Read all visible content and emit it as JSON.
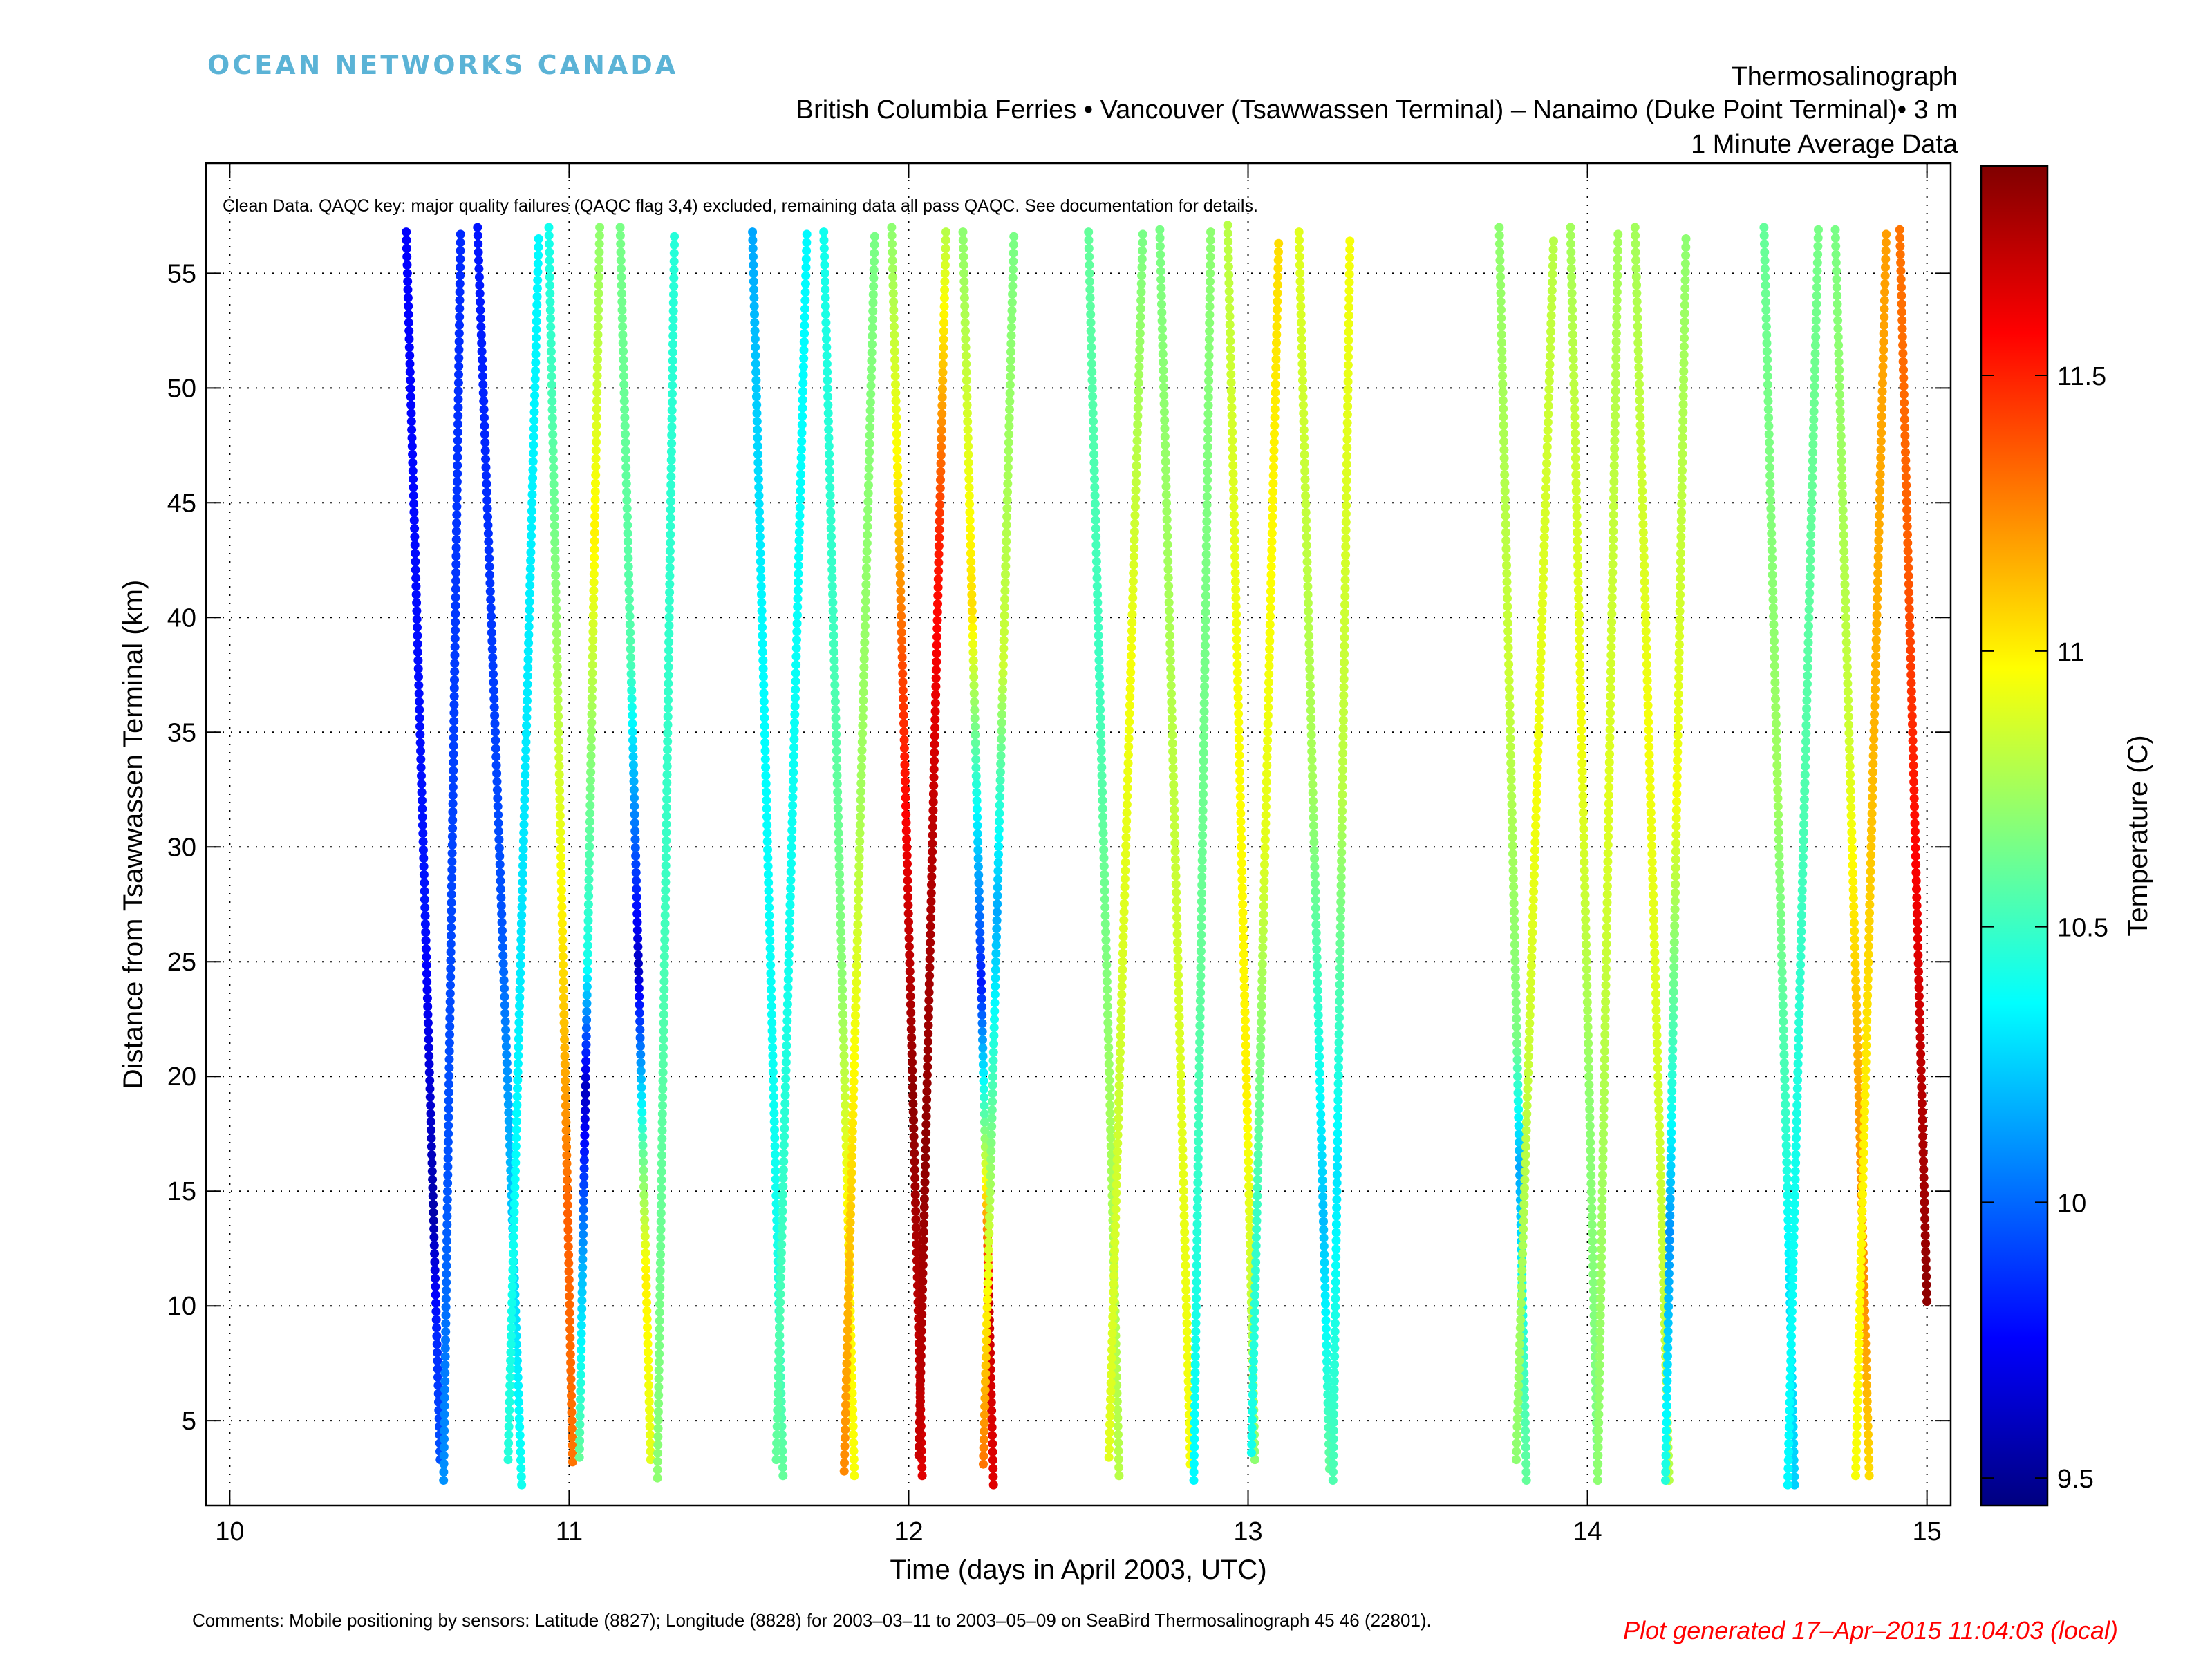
{
  "logo_text": "OCEAN NETWORKS CANADA",
  "title_lines": [
    "Thermosalinograph",
    "British Columbia Ferries  • Vancouver (Tsawwassen Terminal) – Nanaimo (Duke Point Terminal)•  3 m",
    "1 Minute Average Data"
  ],
  "footer": {
    "comments": "Comments: Mobile positioning by sensors: Latitude (8827); Longitude (8828) for 2003–03–11 to 2003–05–09 on SeaBird Thermosalinograph 45 46 (22801).",
    "generated": "Plot generated 17–Apr–2015 11:04:03 (local)"
  },
  "chart_data": {
    "type": "scatter",
    "annotation": "Clean Data. QAQC key: major quality failures (QAQC flag 3,4) excluded, remaining data all pass QAQC. See documentation for details.",
    "xlabel": "Time (days in April 2003, UTC)",
    "ylabel": "Distance from Tsawwassen Terminal (km)",
    "colorbar_label": "Temperature (C)",
    "xlim": [
      9.93,
      15.07
    ],
    "ylim": [
      1.3,
      59.8
    ],
    "xticks": [
      10,
      11,
      12,
      13,
      14,
      15
    ],
    "yticks": [
      5,
      10,
      15,
      20,
      25,
      30,
      35,
      40,
      45,
      50,
      55
    ],
    "clim": [
      9.45,
      11.88
    ],
    "cticks": [
      9.5,
      10,
      10.5,
      11,
      11.5
    ],
    "grid": true,
    "colormap": "jet",
    "transects": [
      {
        "x0": 10.52,
        "x1": 10.62,
        "y0": 56.8,
        "y1": 3.3,
        "temps": [
          [
            0,
            9.75
          ],
          [
            0.55,
            9.8
          ],
          [
            0.8,
            9.55
          ],
          [
            0.9,
            9.85
          ],
          [
            1,
            9.95
          ]
        ]
      },
      {
        "x0": 10.68,
        "x1": 10.63,
        "y0": 56.7,
        "y1": 2.4,
        "temps": [
          [
            0,
            9.85
          ],
          [
            0.4,
            9.9
          ],
          [
            0.75,
            9.95
          ],
          [
            1,
            10.1
          ]
        ]
      },
      {
        "x0": 10.73,
        "x1": 10.86,
        "y0": 57.0,
        "y1": 2.2,
        "temps": [
          [
            0,
            9.8
          ],
          [
            0.55,
            9.95
          ],
          [
            0.75,
            10.2
          ],
          [
            1,
            10.4
          ]
        ]
      },
      {
        "x0": 10.91,
        "x1": 10.82,
        "y0": 56.5,
        "y1": 3.3,
        "temps": [
          [
            0,
            10.35
          ],
          [
            0.55,
            10.3
          ],
          [
            1,
            10.45
          ]
        ]
      },
      {
        "x0": 10.94,
        "x1": 11.01,
        "y0": 57.0,
        "y1": 3.2,
        "temps": [
          [
            0,
            10.4
          ],
          [
            0.3,
            10.7
          ],
          [
            0.6,
            11.05
          ],
          [
            0.8,
            11.35
          ],
          [
            1,
            11.3
          ]
        ]
      },
      {
        "x0": 11.09,
        "x1": 11.03,
        "y0": 57.0,
        "y1": 3.4,
        "temps": [
          [
            0,
            10.7
          ],
          [
            0.25,
            11.0
          ],
          [
            0.6,
            10.4
          ],
          [
            0.7,
            9.6
          ],
          [
            0.85,
            10.2
          ],
          [
            1,
            10.6
          ]
        ]
      },
      {
        "x0": 11.15,
        "x1": 11.24,
        "y0": 57.0,
        "y1": 3.3,
        "temps": [
          [
            0,
            10.65
          ],
          [
            0.35,
            10.55
          ],
          [
            0.6,
            9.6
          ],
          [
            0.75,
            10.6
          ],
          [
            0.85,
            11.0
          ],
          [
            1,
            10.9
          ]
        ]
      },
      {
        "x0": 11.31,
        "x1": 11.26,
        "y0": 56.6,
        "y1": 2.5,
        "temps": [
          [
            0,
            10.45
          ],
          [
            0.5,
            10.5
          ],
          [
            1,
            10.7
          ]
        ]
      },
      {
        "x0": 11.54,
        "x1": 11.63,
        "y0": 56.8,
        "y1": 2.6,
        "temps": [
          [
            0,
            10.15
          ],
          [
            0.3,
            10.35
          ],
          [
            0.8,
            10.4
          ],
          [
            1,
            10.6
          ]
        ]
      },
      {
        "x0": 11.7,
        "x1": 11.61,
        "y0": 56.7,
        "y1": 3.3,
        "temps": [
          [
            0,
            10.35
          ],
          [
            0.6,
            10.4
          ],
          [
            1,
            10.6
          ]
        ]
      },
      {
        "x0": 11.75,
        "x1": 11.84,
        "y0": 56.8,
        "y1": 2.6,
        "temps": [
          [
            0,
            10.4
          ],
          [
            0.3,
            10.5
          ],
          [
            0.6,
            10.7
          ],
          [
            0.8,
            11.0
          ],
          [
            1,
            10.95
          ]
        ]
      },
      {
        "x0": 11.9,
        "x1": 11.81,
        "y0": 56.6,
        "y1": 2.8,
        "temps": [
          [
            0,
            10.65
          ],
          [
            0.45,
            10.75
          ],
          [
            0.8,
            11.1
          ],
          [
            1,
            11.25
          ]
        ]
      },
      {
        "x0": 11.95,
        "x1": 12.04,
        "y0": 57.0,
        "y1": 2.6,
        "temps": [
          [
            0,
            10.7
          ],
          [
            0.2,
            11.0
          ],
          [
            0.35,
            11.4
          ],
          [
            0.55,
            11.7
          ],
          [
            0.7,
            11.85
          ],
          [
            1,
            11.65
          ]
        ]
      },
      {
        "x0": 12.11,
        "x1": 12.03,
        "y0": 56.8,
        "y1": 3.5,
        "temps": [
          [
            0,
            10.8
          ],
          [
            0.25,
            11.5
          ],
          [
            0.5,
            11.75
          ],
          [
            0.75,
            11.85
          ],
          [
            1,
            11.7
          ]
        ]
      },
      {
        "x0": 12.16,
        "x1": 12.25,
        "y0": 56.8,
        "y1": 2.2,
        "temps": [
          [
            0,
            10.7
          ],
          [
            0.3,
            11.05
          ],
          [
            0.5,
            10.2
          ],
          [
            0.6,
            9.8
          ],
          [
            0.75,
            10.9
          ],
          [
            0.85,
            11.7
          ],
          [
            1,
            11.65
          ]
        ]
      },
      {
        "x0": 12.31,
        "x1": 12.22,
        "y0": 56.6,
        "y1": 3.1,
        "temps": [
          [
            0,
            10.65
          ],
          [
            0.35,
            10.85
          ],
          [
            0.55,
            10.15
          ],
          [
            0.75,
            10.7
          ],
          [
            1,
            11.3
          ]
        ]
      },
      {
        "x0": 12.53,
        "x1": 12.62,
        "y0": 56.8,
        "y1": 2.6,
        "temps": [
          [
            0,
            10.6
          ],
          [
            0.35,
            10.5
          ],
          [
            0.7,
            10.75
          ],
          [
            1,
            10.8
          ]
        ]
      },
      {
        "x0": 12.69,
        "x1": 12.59,
        "y0": 56.7,
        "y1": 3.4,
        "temps": [
          [
            0,
            10.65
          ],
          [
            0.35,
            10.95
          ],
          [
            0.7,
            10.85
          ],
          [
            1,
            10.9
          ]
        ]
      },
      {
        "x0": 12.74,
        "x1": 12.83,
        "y0": 56.9,
        "y1": 3.1,
        "temps": [
          [
            0,
            10.65
          ],
          [
            0.4,
            10.8
          ],
          [
            0.7,
            10.9
          ],
          [
            1,
            10.95
          ]
        ]
      },
      {
        "x0": 12.89,
        "x1": 12.84,
        "y0": 56.8,
        "y1": 2.4,
        "temps": [
          [
            0,
            10.7
          ],
          [
            0.6,
            10.6
          ],
          [
            0.8,
            10.45
          ],
          [
            1,
            10.35
          ]
        ]
      },
      {
        "x0": 12.94,
        "x1": 13.02,
        "y0": 57.1,
        "y1": 3.3,
        "temps": [
          [
            0,
            10.8
          ],
          [
            0.35,
            10.95
          ],
          [
            0.7,
            11.0
          ],
          [
            0.9,
            10.8
          ],
          [
            1,
            10.7
          ]
        ]
      },
      {
        "x0": 13.09,
        "x1": 13.01,
        "y0": 56.3,
        "y1": 3.6,
        "temps": [
          [
            0,
            11.05
          ],
          [
            0.5,
            10.9
          ],
          [
            0.8,
            10.5
          ],
          [
            1,
            10.4
          ]
        ]
      },
      {
        "x0": 13.15,
        "x1": 13.24,
        "y0": 56.8,
        "y1": 2.9,
        "temps": [
          [
            0,
            10.9
          ],
          [
            0.45,
            10.75
          ],
          [
            0.8,
            10.2
          ],
          [
            0.9,
            10.4
          ],
          [
            1,
            10.6
          ]
        ]
      },
      {
        "x0": 13.3,
        "x1": 13.25,
        "y0": 56.4,
        "y1": 2.4,
        "temps": [
          [
            0,
            10.95
          ],
          [
            0.45,
            10.8
          ],
          [
            0.75,
            10.3
          ],
          [
            1,
            10.55
          ]
        ]
      },
      {
        "x0": 13.74,
        "x1": 13.82,
        "y0": 57.0,
        "y1": 2.4,
        "temps": [
          [
            0,
            10.7
          ],
          [
            0.35,
            10.85
          ],
          [
            0.65,
            10.65
          ],
          [
            0.75,
            10.15
          ],
          [
            0.9,
            10.5
          ],
          [
            1,
            10.6
          ]
        ]
      },
      {
        "x0": 13.9,
        "x1": 13.79,
        "y0": 56.4,
        "y1": 3.3,
        "temps": [
          [
            0,
            10.8
          ],
          [
            0.45,
            10.95
          ],
          [
            0.75,
            10.8
          ],
          [
            1,
            10.7
          ]
        ]
      },
      {
        "x0": 13.95,
        "x1": 14.03,
        "y0": 57.0,
        "y1": 2.4,
        "temps": [
          [
            0,
            10.75
          ],
          [
            0.4,
            10.95
          ],
          [
            0.7,
            10.7
          ],
          [
            1,
            10.65
          ]
        ]
      },
      {
        "x0": 14.09,
        "x1": 14.03,
        "y0": 56.7,
        "y1": 2.4,
        "temps": [
          [
            0,
            10.75
          ],
          [
            0.45,
            10.9
          ],
          [
            0.75,
            10.75
          ],
          [
            1,
            10.7
          ]
        ]
      },
      {
        "x0": 14.14,
        "x1": 14.24,
        "y0": 57.0,
        "y1": 2.4,
        "temps": [
          [
            0,
            10.75
          ],
          [
            0.4,
            10.95
          ],
          [
            0.75,
            10.85
          ],
          [
            1,
            10.8
          ]
        ]
      },
      {
        "x0": 14.29,
        "x1": 14.23,
        "y0": 56.5,
        "y1": 2.4,
        "temps": [
          [
            0,
            10.7
          ],
          [
            0.45,
            10.95
          ],
          [
            0.7,
            10.4
          ],
          [
            0.8,
            10.1
          ],
          [
            1,
            10.45
          ]
        ]
      },
      {
        "x0": 14.52,
        "x1": 14.61,
        "y0": 57.0,
        "y1": 2.2,
        "temps": [
          [
            0,
            10.6
          ],
          [
            0.45,
            10.75
          ],
          [
            0.7,
            10.5
          ],
          [
            0.85,
            10.3
          ],
          [
            1,
            10.25
          ]
        ]
      },
      {
        "x0": 14.68,
        "x1": 14.59,
        "y0": 56.9,
        "y1": 2.2,
        "temps": [
          [
            0,
            10.65
          ],
          [
            0.45,
            10.55
          ],
          [
            0.75,
            10.4
          ],
          [
            1,
            10.35
          ]
        ]
      },
      {
        "x0": 14.73,
        "x1": 14.83,
        "y0": 56.9,
        "y1": 2.6,
        "temps": [
          [
            0,
            10.65
          ],
          [
            0.4,
            10.85
          ],
          [
            0.7,
            11.2
          ],
          [
            0.85,
            11.25
          ],
          [
            1,
            11.05
          ]
        ]
      },
      {
        "x0": 14.88,
        "x1": 14.79,
        "y0": 56.7,
        "y1": 2.6,
        "temps": [
          [
            0,
            11.2
          ],
          [
            0.4,
            11.15
          ],
          [
            0.7,
            11.0
          ],
          [
            1,
            10.95
          ]
        ]
      },
      {
        "x0": 14.92,
        "x1": 15.0,
        "y0": 56.9,
        "y1": 10.2,
        "temps": [
          [
            0,
            11.3
          ],
          [
            0.3,
            11.35
          ],
          [
            0.55,
            11.55
          ],
          [
            0.8,
            11.75
          ],
          [
            1,
            11.85
          ]
        ]
      }
    ]
  }
}
